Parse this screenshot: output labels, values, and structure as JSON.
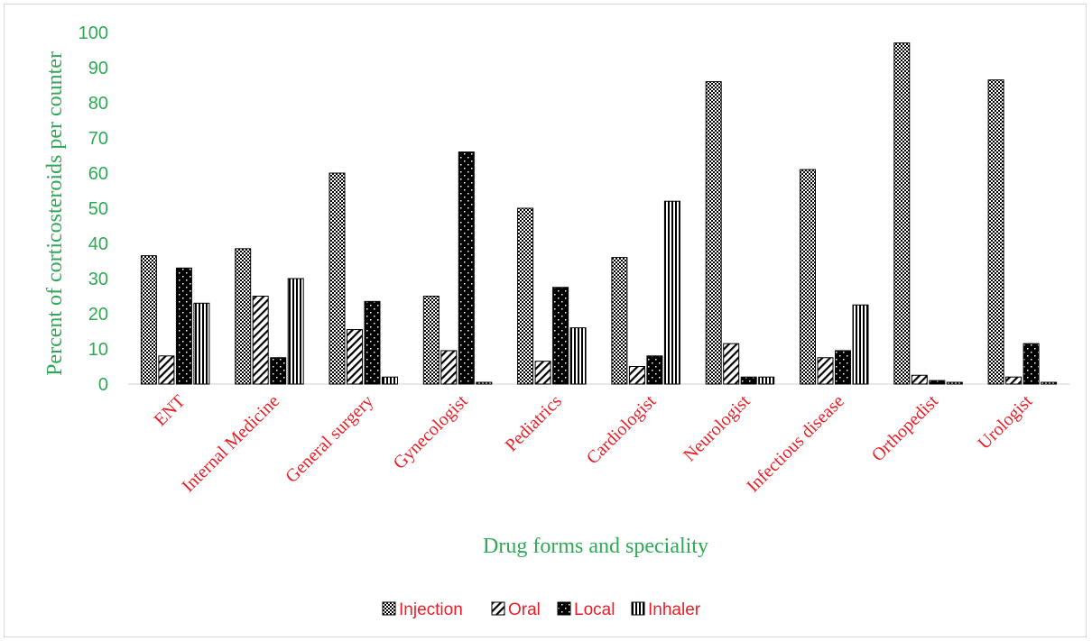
{
  "chart_data": {
    "type": "bar",
    "xlabel": "Drug forms and speciality",
    "ylabel": "Percent of corticosteroids per counter",
    "ylim": [
      0,
      100
    ],
    "yticks": [
      0,
      10,
      20,
      30,
      40,
      50,
      60,
      70,
      80,
      90,
      100
    ],
    "grid": false,
    "legend_position": "bottom",
    "categories": [
      "ENT",
      "Internal Medicine",
      "General surgery",
      "Gynecologist",
      "Pediatrics",
      "Cardiologist",
      "Neurologist",
      "Infectious  disease",
      "Orthopedist",
      "Urologist"
    ],
    "series": [
      {
        "name": "Injection",
        "pattern": "dots-dense",
        "values": [
          36.5,
          38.5,
          60,
          25,
          50,
          36,
          86,
          61,
          97,
          86.5
        ]
      },
      {
        "name": "Oral",
        "pattern": "diagonal",
        "values": [
          8,
          25,
          15.5,
          9.5,
          6.5,
          5,
          11.5,
          7.5,
          2.5,
          2
        ]
      },
      {
        "name": "Local",
        "pattern": "dots-sparse-black",
        "values": [
          33,
          7.5,
          23.5,
          66,
          27.5,
          8,
          2,
          9.5,
          1,
          11.5
        ]
      },
      {
        "name": "Inhaler",
        "pattern": "vertical",
        "values": [
          23,
          30,
          2,
          0.5,
          16,
          52,
          2,
          22.5,
          0.5,
          0.5
        ]
      }
    ],
    "colors": {
      "tick_label": "#2eaa55",
      "category_label": "#ee1c25",
      "legend_label": "#ee1c25",
      "axis_title": "#2eaa55"
    }
  }
}
